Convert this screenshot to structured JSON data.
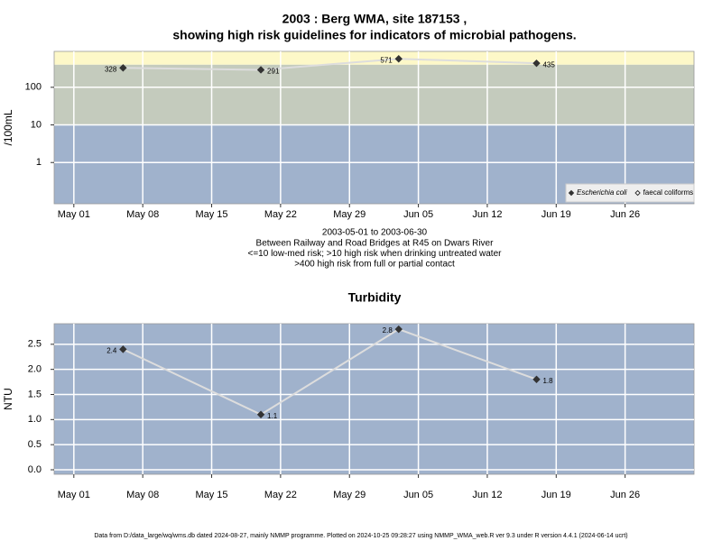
{
  "chart_data": [
    {
      "type": "line",
      "title": [
        "2003 : Berg WMA, site 187153 ,",
        "showing high risk guidelines for indicators of microbial pathogens."
      ],
      "subtitle": [
        "2003-05-01 to 2003-06-30",
        "Between Railway and Road Bridges at R45 on Dwars River",
        "<=10 low-med risk; >10 high risk when drinking untreated water",
        ">400 high risk from full or partial contact"
      ],
      "ylabel": "/100mL",
      "x": [
        "2003-05-06",
        "2003-05-20",
        "2003-06-03",
        "2003-06-17"
      ],
      "series": [
        {
          "name": "Escherichia coli",
          "color": "#333333",
          "marker": "filled",
          "values": [
            328,
            291,
            571,
            435
          ]
        },
        {
          "name": "faecal coliforms",
          "color": "#333333",
          "marker": "open",
          "values": [
            null,
            null,
            null,
            null
          ]
        }
      ],
      "log_y": true,
      "thresholds": [
        10,
        400
      ],
      "band_colors": [
        "#a0b2cc",
        "#c4cbbd",
        "#fdf8c8"
      ],
      "line_color": "#dddddd",
      "xlim": [
        "2003-04-29",
        "2003-07-03"
      ],
      "xticks": [
        {
          "value": "2003-05-01",
          "label": "May 01"
        },
        {
          "value": "2003-05-08",
          "label": "May 08"
        },
        {
          "value": "2003-05-15",
          "label": "May 15"
        },
        {
          "value": "2003-05-22",
          "label": "May 22"
        },
        {
          "value": "2003-05-29",
          "label": "May 29"
        },
        {
          "value": "2003-06-05",
          "label": "Jun 05"
        },
        {
          "value": "2003-06-12",
          "label": "Jun 12"
        },
        {
          "value": "2003-06-19",
          "label": "Jun 19"
        },
        {
          "value": "2003-06-26",
          "label": "Jun 26"
        }
      ],
      "ylim": [
        0.08,
        900
      ],
      "yticks": [
        1,
        10,
        100
      ],
      "grid": true,
      "legend": "bottom right"
    },
    {
      "type": "line",
      "title": [
        "Turbidity"
      ],
      "ylabel": "NTU",
      "x": [
        "2003-05-06",
        "2003-05-20",
        "2003-06-03",
        "2003-06-17"
      ],
      "series": [
        {
          "color": "#333333",
          "marker": "filled",
          "values": [
            2.4,
            1.1,
            2.8,
            1.8
          ]
        }
      ],
      "log_y": false,
      "band_colors": [
        "#a0b2cc"
      ],
      "line_color": "#dddddd",
      "xlim": [
        "2003-04-29",
        "2003-07-03"
      ],
      "xticks": [
        {
          "value": "2003-05-01",
          "label": "May 01"
        },
        {
          "value": "2003-05-08",
          "label": "May 08"
        },
        {
          "value": "2003-05-15",
          "label": "May 15"
        },
        {
          "value": "2003-05-22",
          "label": "May 22"
        },
        {
          "value": "2003-05-29",
          "label": "May 29"
        },
        {
          "value": "2003-06-05",
          "label": "Jun 05"
        },
        {
          "value": "2003-06-12",
          "label": "Jun 12"
        },
        {
          "value": "2003-06-19",
          "label": "Jun 19"
        },
        {
          "value": "2003-06-26",
          "label": "Jun 26"
        }
      ],
      "ylim": [
        -0.09,
        2.91
      ],
      "yticks": [
        {
          "value": 0,
          "label": "0.0"
        },
        0.5,
        {
          "value": 1,
          "label": "1.0"
        },
        1.5,
        {
          "value": 2,
          "label": "2.0"
        },
        2.5
      ],
      "grid": true
    }
  ],
  "footer": "Data from D:/data_large/wq/wms.db dated 2024-08-27, mainly NMMP programme. Plotted on 2024-10-25 09:28:27 using NMMP_WMA_web.R ver 9.3 under R version 4.4.1 (2024-06-14 ucrt)"
}
